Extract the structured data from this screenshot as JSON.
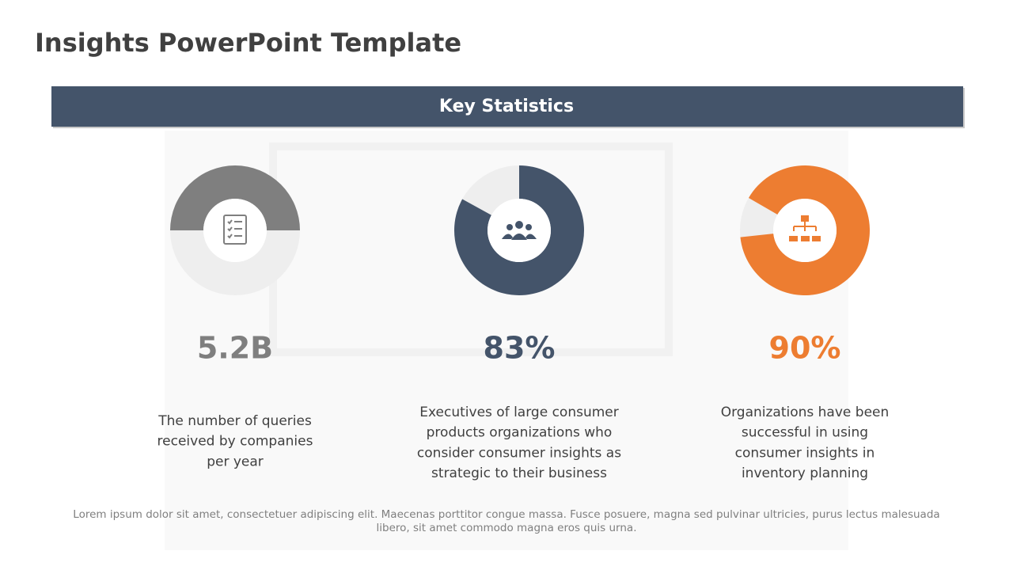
{
  "title": "Insights PowerPoint Template",
  "banner": "Key Statistics",
  "stats": [
    {
      "value": "5.2B",
      "ring": 50,
      "color": "#7f7f7f",
      "description": [
        "The number of queries",
        "received by companies",
        "per year"
      ]
    },
    {
      "value": "83%",
      "ring": 83,
      "color": "#44546a",
      "description": [
        "Executives of large consumer",
        "products organizations who",
        "consider consumer insights as",
        "strategic to their business"
      ]
    },
    {
      "value": "90%",
      "ring": 90,
      "color": "#ed7d31",
      "description": [
        "Organizations have been",
        "successful in using",
        "consumer insights in",
        "inventory planning"
      ]
    }
  ],
  "footer": [
    "Lorem ipsum dolor sit amet, consectetuer adipiscing elit. Maecenas porttitor congue massa. Fusce posuere, magna sed pulvinar ultricies, purus lectus malesuada",
    "libero, sit amet commodo magna eros quis urna."
  ]
}
